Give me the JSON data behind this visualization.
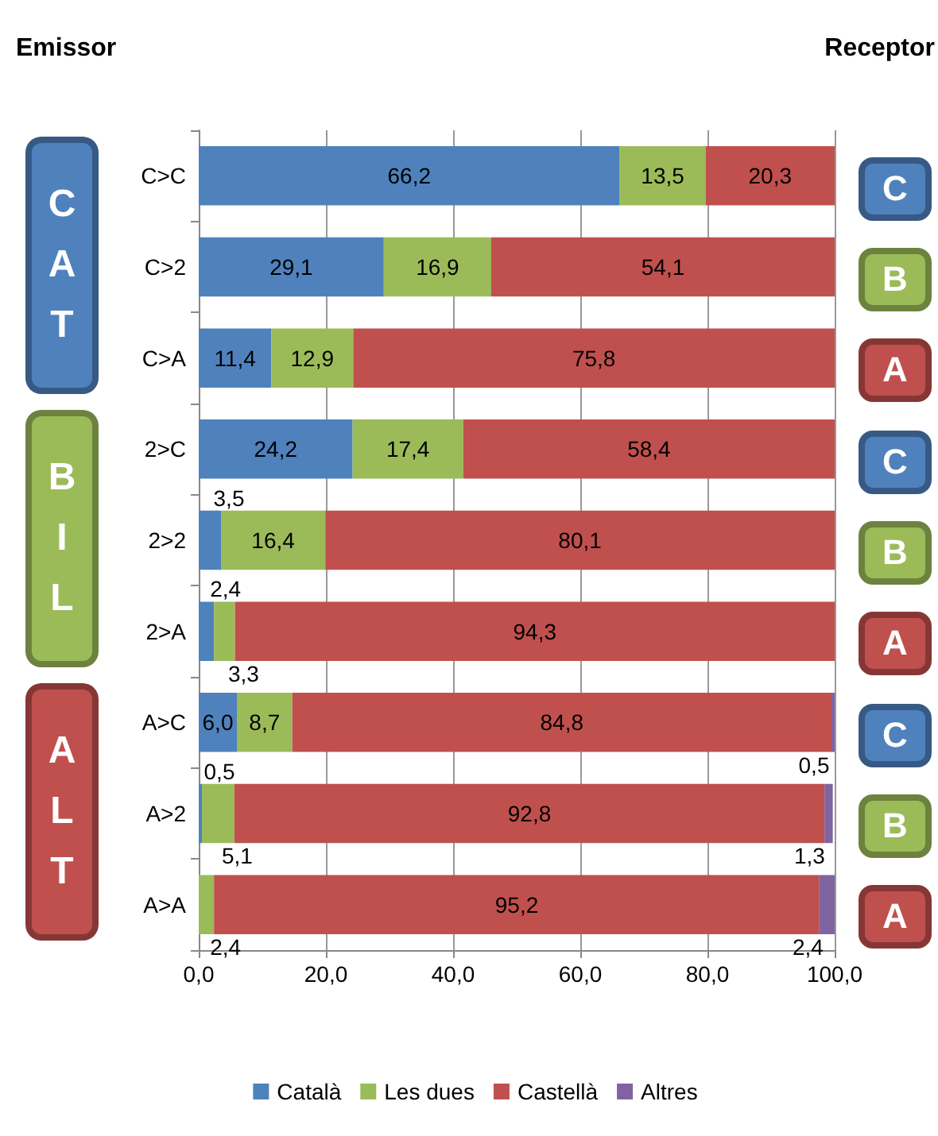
{
  "chart_data": {
    "type": "bar",
    "orientation": "horizontal",
    "stacked": true,
    "categories": [
      "C>C",
      "C>2",
      "C>A",
      "2>C",
      "2>2",
      "2>A",
      "A>C",
      "A>2",
      "A>A"
    ],
    "series": [
      {
        "name": "Català",
        "color": "#4f81bd",
        "values": [
          66.2,
          29.1,
          11.4,
          24.2,
          3.5,
          2.4,
          6.0,
          0.5,
          0
        ],
        "value_labels": [
          "66,2",
          "29,1",
          "11,4",
          "24,2",
          "3,5",
          "2,4",
          "6,0",
          "0,5",
          null
        ]
      },
      {
        "name": "Les dues",
        "color": "#9bbb59",
        "values": [
          13.5,
          16.9,
          12.9,
          17.4,
          16.4,
          3.3,
          8.7,
          5.1,
          2.4
        ],
        "value_labels": [
          "13,5",
          "16,9",
          "12,9",
          "17,4",
          "16,4",
          "3,3",
          "8,7",
          "5,1",
          "2,4"
        ]
      },
      {
        "name": "Castellà",
        "color": "#c0504d",
        "values": [
          20.3,
          54.1,
          75.8,
          58.4,
          80.1,
          94.3,
          84.8,
          92.8,
          95.2
        ],
        "value_labels": [
          "20,3",
          "54,1",
          "75,8",
          "58,4",
          "80,1",
          "94,3",
          "84,8",
          "92,8",
          "95,2"
        ]
      },
      {
        "name": "Altres",
        "color": "#8064a2",
        "values": [
          0,
          0,
          0,
          0,
          0,
          0,
          0.5,
          1.3,
          2.4
        ],
        "value_labels": [
          null,
          null,
          null,
          null,
          null,
          null,
          "0,5",
          "1,3",
          "2,4"
        ]
      }
    ],
    "xlim": [
      0,
      100
    ],
    "xticks": [
      {
        "value": 0,
        "label": "0,0"
      },
      {
        "value": 20,
        "label": "20,0"
      },
      {
        "value": 40,
        "label": "40,0"
      },
      {
        "value": 60,
        "label": "60,0"
      },
      {
        "value": 80,
        "label": "80,0"
      },
      {
        "value": 100,
        "label": "100,0"
      }
    ],
    "grid": "x",
    "legend": "bottom",
    "annotations": [
      "Emissor",
      "Receptor",
      "CAT",
      "BIL",
      "ALT",
      "C",
      "B",
      "A",
      "C",
      "B",
      "A",
      "C",
      "B",
      "A"
    ]
  }
}
